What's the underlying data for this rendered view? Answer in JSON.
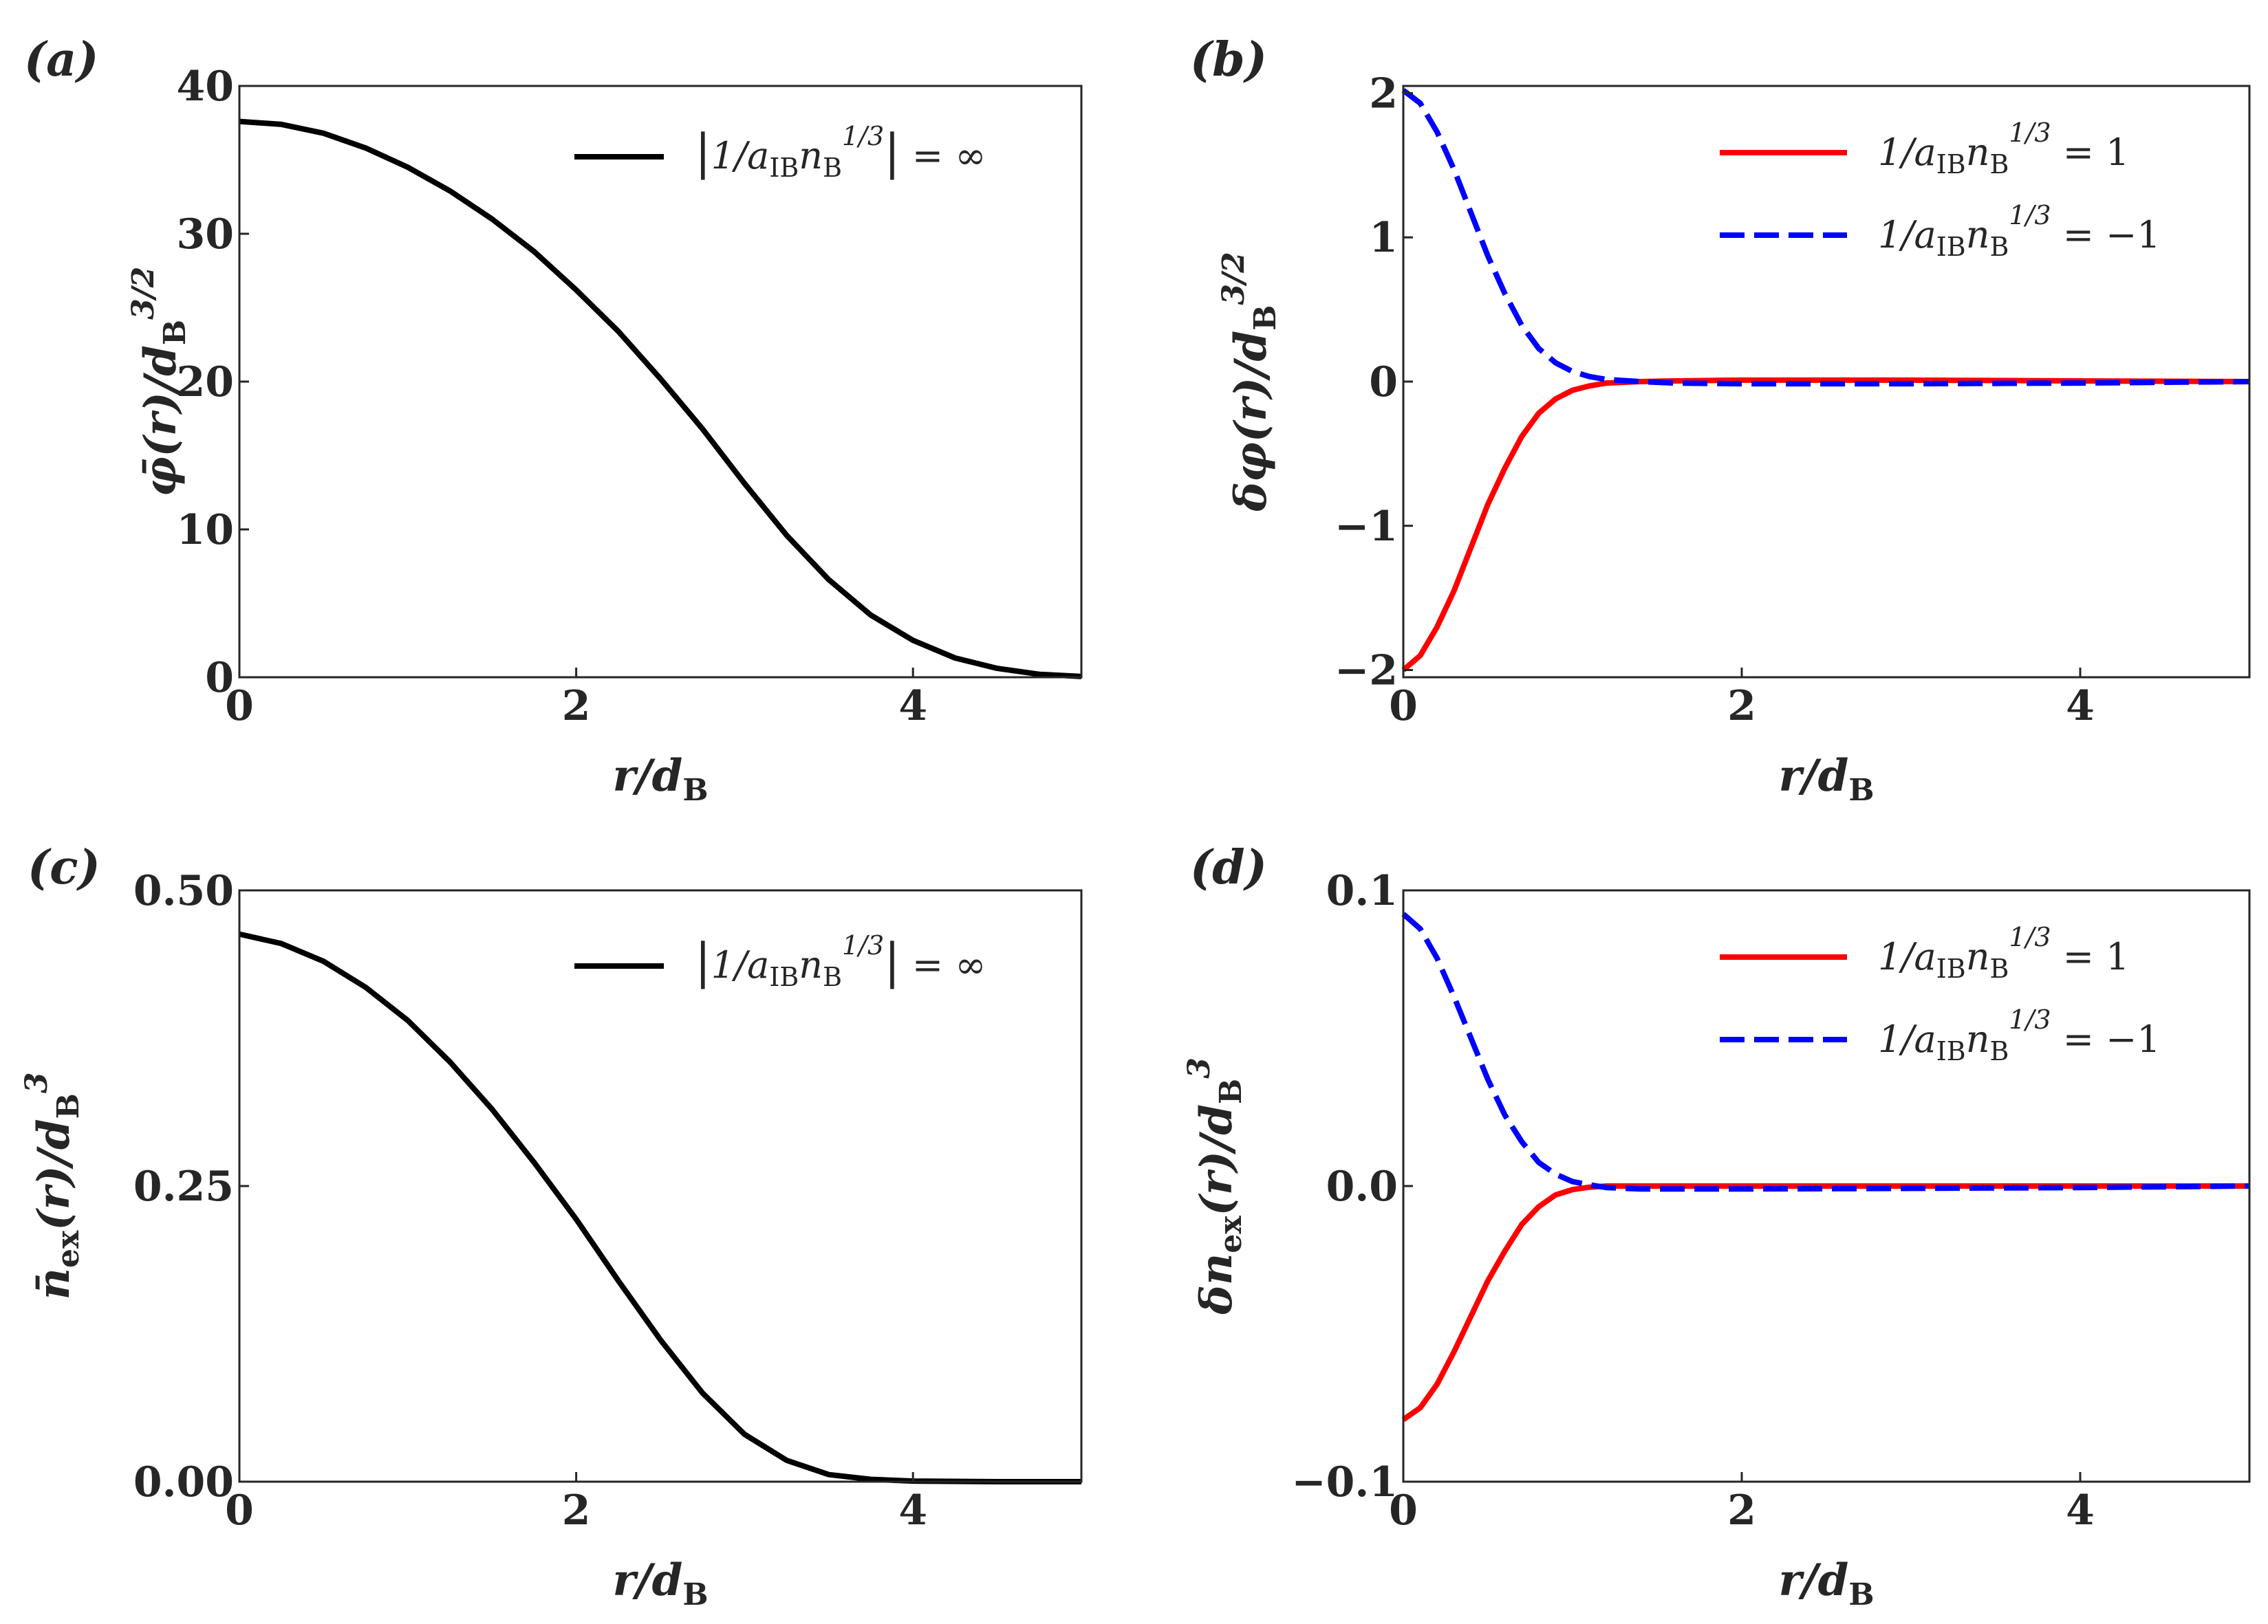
{
  "chart_data": [
    {
      "panel": "(a)",
      "type": "line",
      "xlabel": "r/d_B",
      "ylabel": "φ̄(r)/d_B^{3/2}",
      "xlim": [
        0,
        5
      ],
      "ylim": [
        0,
        40
      ],
      "xticks": [
        0,
        2,
        4
      ],
      "yticks": [
        0,
        10,
        20,
        30,
        40
      ],
      "xtick_labels": [
        "0",
        "2",
        "4"
      ],
      "ytick_labels": [
        "0",
        "10",
        "20",
        "30",
        "40"
      ],
      "legend_position": "top-right",
      "series": [
        {
          "name": "|1/a_IB n_B^{1/3}| = ∞",
          "color": "#000000",
          "dash": "solid",
          "x": [
            0,
            0.25,
            0.5,
            0.75,
            1.0,
            1.25,
            1.5,
            1.75,
            2.0,
            2.25,
            2.5,
            2.75,
            3.0,
            3.25,
            3.5,
            3.75,
            4.0,
            4.25,
            4.5,
            4.75,
            5.0
          ],
          "y": [
            37.6,
            37.4,
            36.8,
            35.8,
            34.5,
            32.9,
            31.0,
            28.8,
            26.2,
            23.4,
            20.2,
            16.8,
            13.1,
            9.6,
            6.6,
            4.2,
            2.5,
            1.3,
            0.6,
            0.2,
            0.05
          ]
        }
      ]
    },
    {
      "panel": "(b)",
      "type": "line",
      "xlabel": "r/d_B",
      "ylabel": "δφ(r)/d_B^{3/2}",
      "xlim": [
        0,
        5
      ],
      "ylim": [
        -2.05,
        2.05
      ],
      "xticks": [
        0,
        2,
        4
      ],
      "yticks": [
        -2,
        -1,
        0,
        1,
        2
      ],
      "xtick_labels": [
        "0",
        "2",
        "4"
      ],
      "ytick_labels": [
        "−2",
        "−1",
        "0",
        "1",
        "2"
      ],
      "legend_position": "top-right",
      "series": [
        {
          "name": "1/a_IB n_B^{1/3} = 1",
          "color": "#ff0000",
          "dash": "solid",
          "x": [
            0,
            0.1,
            0.2,
            0.3,
            0.4,
            0.5,
            0.6,
            0.7,
            0.8,
            0.9,
            1.0,
            1.1,
            1.2,
            1.4,
            1.6,
            2.0,
            3.0,
            4.0,
            5.0
          ],
          "y": [
            -2.0,
            -1.9,
            -1.7,
            -1.45,
            -1.15,
            -0.85,
            -0.6,
            -0.38,
            -0.22,
            -0.12,
            -0.06,
            -0.03,
            -0.01,
            0.0,
            0.005,
            0.01,
            0.01,
            0.005,
            0.0
          ]
        },
        {
          "name": "1/a_IB n_B^{1/3} = −1",
          "color": "#0000ff",
          "dash": "dashed",
          "x": [
            0,
            0.1,
            0.2,
            0.3,
            0.4,
            0.5,
            0.6,
            0.7,
            0.8,
            0.9,
            1.0,
            1.1,
            1.2,
            1.4,
            1.6,
            2.0,
            3.0,
            4.0,
            5.0
          ],
          "y": [
            2.02,
            1.93,
            1.73,
            1.47,
            1.17,
            0.87,
            0.61,
            0.39,
            0.23,
            0.13,
            0.07,
            0.035,
            0.015,
            0.0,
            -0.01,
            -0.015,
            -0.015,
            -0.01,
            0.0
          ]
        }
      ]
    },
    {
      "panel": "(c)",
      "type": "line",
      "xlabel": "r/d_B",
      "ylabel": "n̄_ex(r)/d_B^3",
      "xlim": [
        0,
        5
      ],
      "ylim": [
        0,
        0.5
      ],
      "xticks": [
        0,
        2,
        4
      ],
      "yticks": [
        0,
        0.25,
        0.5
      ],
      "xtick_labels": [
        "0",
        "2",
        "4"
      ],
      "ytick_labels": [
        "0.00",
        "0.25",
        "0.50"
      ],
      "legend_position": "top-right",
      "series": [
        {
          "name": "|1/a_IB n_B^{1/3}| = ∞",
          "color": "#000000",
          "dash": "solid",
          "x": [
            0,
            0.25,
            0.5,
            0.75,
            1.0,
            1.25,
            1.5,
            1.75,
            2.0,
            2.25,
            2.5,
            2.75,
            3.0,
            3.25,
            3.5,
            3.75,
            4.0,
            4.5,
            5.0
          ],
          "y": [
            0.463,
            0.455,
            0.44,
            0.418,
            0.39,
            0.355,
            0.315,
            0.27,
            0.222,
            0.17,
            0.12,
            0.075,
            0.04,
            0.018,
            0.006,
            0.002,
            0.0005,
            0.0,
            0.0
          ]
        }
      ]
    },
    {
      "panel": "(d)",
      "type": "line",
      "xlabel": "r/d_B",
      "ylabel": "δn_ex(r)/d_B^3",
      "xlim": [
        0,
        5
      ],
      "ylim": [
        -0.1,
        0.1
      ],
      "xticks": [
        0,
        2,
        4
      ],
      "yticks": [
        -0.1,
        0.0,
        0.1
      ],
      "xtick_labels": [
        "0",
        "2",
        "4"
      ],
      "ytick_labels": [
        "−0.1",
        "0.0",
        "0.1"
      ],
      "legend_position": "top-right",
      "series": [
        {
          "name": "1/a_IB n_B^{1/3} = 1",
          "color": "#ff0000",
          "dash": "solid",
          "x": [
            0,
            0.1,
            0.2,
            0.3,
            0.4,
            0.5,
            0.6,
            0.7,
            0.8,
            0.9,
            1.0,
            1.1,
            1.2,
            1.4,
            2.0,
            3.0,
            4.0,
            5.0
          ],
          "y": [
            -0.079,
            -0.075,
            -0.067,
            -0.056,
            -0.044,
            -0.032,
            -0.022,
            -0.013,
            -0.007,
            -0.003,
            -0.0012,
            -0.0004,
            0.0,
            0.0,
            0.0,
            0.0,
            0.0,
            0.0
          ]
        },
        {
          "name": "1/a_IB n_B^{1/3} = −1",
          "color": "#0000ff",
          "dash": "dashed",
          "x": [
            0,
            0.1,
            0.2,
            0.3,
            0.4,
            0.5,
            0.6,
            0.7,
            0.8,
            0.9,
            1.0,
            1.1,
            1.2,
            1.4,
            2.0,
            3.0,
            4.0,
            5.0
          ],
          "y": [
            0.092,
            0.087,
            0.077,
            0.064,
            0.05,
            0.036,
            0.024,
            0.015,
            0.008,
            0.004,
            0.0015,
            0.0004,
            -0.0005,
            -0.001,
            -0.001,
            -0.0008,
            -0.0005,
            0.0
          ]
        }
      ]
    }
  ],
  "colors": {
    "black": "#000000",
    "red": "#ff0000",
    "blue": "#0000ff",
    "axis": "#262626"
  }
}
